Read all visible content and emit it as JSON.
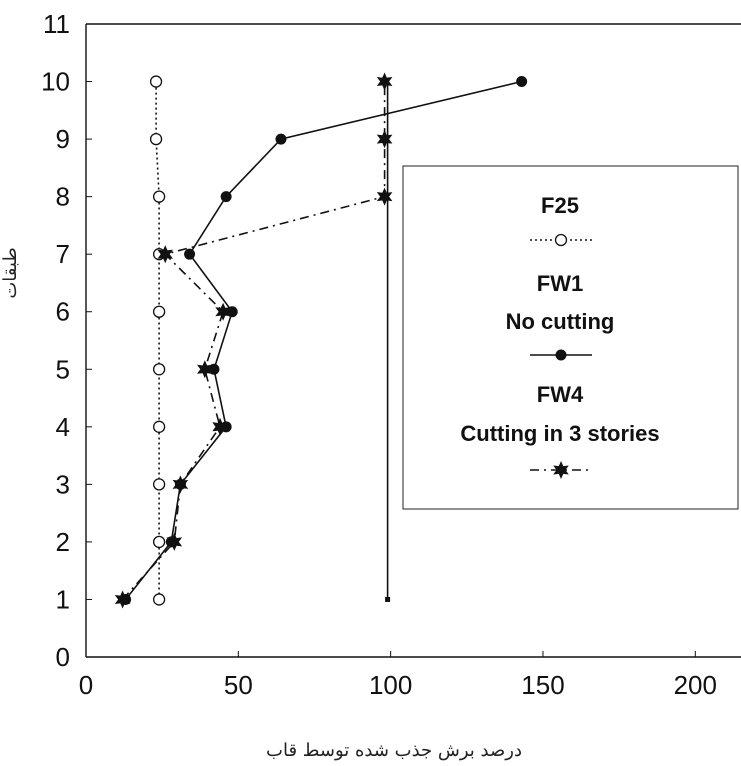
{
  "chart_data": {
    "type": "line",
    "xlabel": "درصد برش جذب شده توسط قاب",
    "ylabel": "طبقات",
    "xlim": [
      0,
      215
    ],
    "ylim": [
      0,
      11
    ],
    "x_ticks": [
      "0",
      "50",
      "100",
      "150",
      "200"
    ],
    "y_ticks": [
      "0",
      "1",
      "2",
      "3",
      "4",
      "5",
      "6",
      "7",
      "8",
      "9",
      "10",
      "11"
    ],
    "grid": false,
    "legend_position": "right",
    "series": [
      {
        "name": "F25",
        "style": "dotted-open-circle",
        "color": "#111111",
        "x": [
          24,
          24,
          24,
          24,
          24,
          24,
          24,
          24,
          23,
          23
        ],
        "y": [
          1,
          2,
          3,
          4,
          5,
          6,
          7,
          8,
          9,
          10
        ]
      },
      {
        "name": "FW1",
        "label_line2": "No cutting",
        "style": "solid-filled-circle",
        "color": "#111111",
        "x": [
          13,
          28,
          31,
          46,
          42,
          48,
          34,
          46,
          64,
          143
        ],
        "y": [
          1,
          2,
          3,
          4,
          5,
          6,
          7,
          8,
          9,
          10
        ]
      },
      {
        "name": "FW4",
        "label_line2": "Cutting in 3 stories",
        "style": "dashdot-star",
        "color": "#111111",
        "x": [
          12,
          29,
          31,
          44,
          39,
          45,
          26,
          98,
          98,
          98
        ],
        "y": [
          1,
          2,
          3,
          4,
          5,
          6,
          7,
          8,
          9,
          10
        ]
      }
    ],
    "vertical_line": {
      "x": 99,
      "y_from": 1,
      "y_to": 10
    }
  }
}
